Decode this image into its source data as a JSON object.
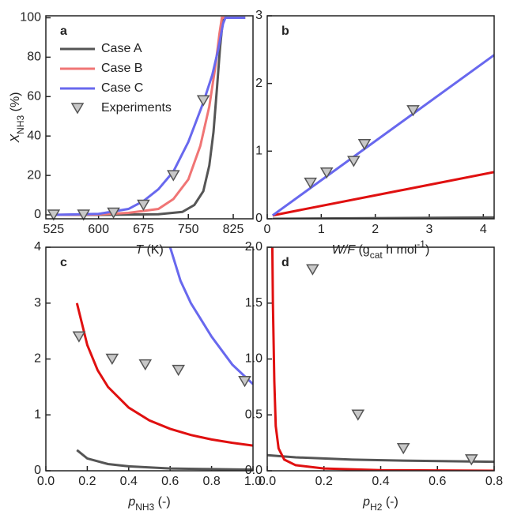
{
  "chart_data": [
    {
      "type": "line",
      "panel_label": "a",
      "xlabel": [
        {
          "text": "T",
          "style": "italic"
        },
        {
          "text": " (K)"
        }
      ],
      "ylabel": [
        {
          "text": "X",
          "style": "italic"
        },
        {
          "text": "NH3",
          "style": "sub"
        },
        {
          "text": " (%)"
        }
      ],
      "xlim": [
        512,
        858
      ],
      "ylim": [
        -2,
        101
      ],
      "xticks": [
        525,
        600,
        675,
        750,
        825
      ],
      "yticks": [
        0,
        20,
        40,
        60,
        80,
        100
      ],
      "legend": "upper left",
      "series": [
        {
          "name": "Case A",
          "color": "#555555",
          "x": [
            525,
            600,
            700,
            740,
            760,
            775,
            785,
            792,
            798,
            803,
            807,
            810,
            845
          ],
          "values": [
            0,
            0,
            0.3,
            1.5,
            5,
            12,
            25,
            42,
            65,
            85,
            97,
            100,
            100
          ]
        },
        {
          "name": "Case B",
          "color": "#f07575",
          "x": [
            525,
            600,
            650,
            700,
            725,
            750,
            770,
            785,
            795,
            802,
            806,
            845
          ],
          "values": [
            0,
            0.2,
            1,
            3,
            8,
            18,
            35,
            55,
            75,
            92,
            100,
            100
          ]
        },
        {
          "name": "Case C",
          "color": "#6868ee",
          "x": [
            525,
            600,
            650,
            675,
            700,
            725,
            750,
            775,
            790,
            800,
            808,
            812,
            845
          ],
          "values": [
            0,
            0.5,
            3,
            7,
            13,
            22,
            37,
            57,
            71,
            84,
            97,
            100,
            100
          ]
        },
        {
          "name": "Experiments",
          "color": "#555555",
          "marker": "triangle-down",
          "x": [
            525,
            575,
            625,
            675,
            725,
            775
          ],
          "values": [
            0,
            0,
            1,
            5,
            20,
            58
          ]
        }
      ]
    },
    {
      "type": "line",
      "panel_label": "b",
      "xlabel": [
        {
          "text": "W/F",
          "style": "italic"
        },
        {
          "text": " (g"
        },
        {
          "text": "cat",
          "style": "sub"
        },
        {
          "text": " h mol"
        },
        {
          "text": "-1",
          "style": "sup"
        },
        {
          "text": ")"
        }
      ],
      "xlim": [
        0,
        4.2
      ],
      "ylim": [
        0,
        3
      ],
      "xticks": [
        0,
        1,
        2,
        3,
        4
      ],
      "yticks": [
        0,
        1,
        2,
        3
      ],
      "series": [
        {
          "name": "Case A",
          "color": "#555555",
          "x": [
            0.1,
            4.2
          ],
          "values": [
            0,
            0.02
          ]
        },
        {
          "name": "Case B",
          "color": "#e01010",
          "x": [
            0.1,
            4.2
          ],
          "values": [
            0.05,
            0.69
          ]
        },
        {
          "name": "Case C",
          "color": "#6868ee",
          "x": [
            0.1,
            4.2
          ],
          "values": [
            0.05,
            2.42
          ]
        },
        {
          "name": "Experiments",
          "color": "#555555",
          "marker": "triangle-down",
          "x": [
            0.8,
            1.1,
            1.6,
            1.8,
            2.7
          ],
          "values": [
            0.53,
            0.68,
            0.85,
            1.1,
            1.6
          ]
        }
      ]
    },
    {
      "type": "line",
      "panel_label": "c",
      "xlabel": [
        {
          "text": "p",
          "style": "italic"
        },
        {
          "text": "NH3",
          "style": "sub"
        },
        {
          "text": " (-)"
        }
      ],
      "xlim": [
        0,
        1
      ],
      "ylim": [
        0,
        4
      ],
      "xticks": [
        {
          "value": 0,
          "label": "0.0"
        },
        {
          "value": 0.2,
          "label": "0.2"
        },
        {
          "value": 0.4,
          "label": "0.4"
        },
        {
          "value": 0.6,
          "label": "0.6"
        },
        {
          "value": 0.8,
          "label": "0.8"
        },
        {
          "value": 1,
          "label": "1.0"
        }
      ],
      "yticks": [
        0,
        1,
        2,
        3,
        4
      ],
      "series": [
        {
          "name": "Case A",
          "color": "#555555",
          "x": [
            0.15,
            0.2,
            0.3,
            0.4,
            0.6,
            0.8,
            1.0
          ],
          "values": [
            0.37,
            0.22,
            0.12,
            0.08,
            0.04,
            0.03,
            0.02
          ]
        },
        {
          "name": "Case B",
          "color": "#e01010",
          "x": [
            0.15,
            0.2,
            0.25,
            0.3,
            0.4,
            0.5,
            0.6,
            0.7,
            0.8,
            0.9,
            1.0
          ],
          "values": [
            3.0,
            2.25,
            1.8,
            1.5,
            1.13,
            0.9,
            0.75,
            0.64,
            0.56,
            0.5,
            0.45
          ]
        },
        {
          "name": "Case C",
          "color": "#6868ee",
          "x": [
            0.6,
            0.65,
            0.7,
            0.8,
            0.9,
            1.0
          ],
          "values": [
            4.0,
            3.4,
            3.0,
            2.4,
            1.9,
            1.55
          ]
        },
        {
          "name": "Experiments",
          "color": "#555555",
          "marker": "triangle-down",
          "x": [
            0.16,
            0.32,
            0.48,
            0.64,
            0.96
          ],
          "values": [
            2.4,
            2.0,
            1.9,
            1.8,
            1.6
          ]
        }
      ]
    },
    {
      "type": "line",
      "panel_label": "d",
      "xlabel": [
        {
          "text": "p",
          "style": "italic"
        },
        {
          "text": "H2",
          "style": "sub"
        },
        {
          "text": " (-)"
        }
      ],
      "xlim": [
        0,
        0.8
      ],
      "ylim": [
        0,
        2
      ],
      "xticks": [
        {
          "value": 0,
          "label": "0.0"
        },
        {
          "value": 0.2,
          "label": "0.2"
        },
        {
          "value": 0.4,
          "label": "0.4"
        },
        {
          "value": 0.6,
          "label": "0.6"
        },
        {
          "value": 0.8,
          "label": "0.8"
        }
      ],
      "yticks": [
        {
          "value": 0,
          "label": "0.0"
        },
        {
          "value": 0.5,
          "label": "0.5"
        },
        {
          "value": 1,
          "label": "1.0"
        },
        {
          "value": 1.5,
          "label": "1.5"
        },
        {
          "value": 2,
          "label": "2.0"
        }
      ],
      "series": [
        {
          "name": "Case A",
          "color": "#555555",
          "x": [
            0,
            0.1,
            0.3,
            0.5,
            0.8
          ],
          "values": [
            0.14,
            0.12,
            0.1,
            0.09,
            0.08
          ]
        },
        {
          "name": "Case B",
          "color": "#e01010",
          "x": [
            0.018,
            0.02,
            0.025,
            0.03,
            0.04,
            0.06,
            0.1,
            0.2,
            0.4,
            0.8
          ],
          "values": [
            2.0,
            1.5,
            0.8,
            0.4,
            0.2,
            0.1,
            0.05,
            0.02,
            0.005,
            0
          ]
        },
        {
          "name": "Experiments",
          "color": "#555555",
          "marker": "triangle-down",
          "x": [
            0.16,
            0.32,
            0.48,
            0.72
          ],
          "values": [
            1.8,
            0.5,
            0.2,
            0.1
          ]
        }
      ]
    }
  ]
}
